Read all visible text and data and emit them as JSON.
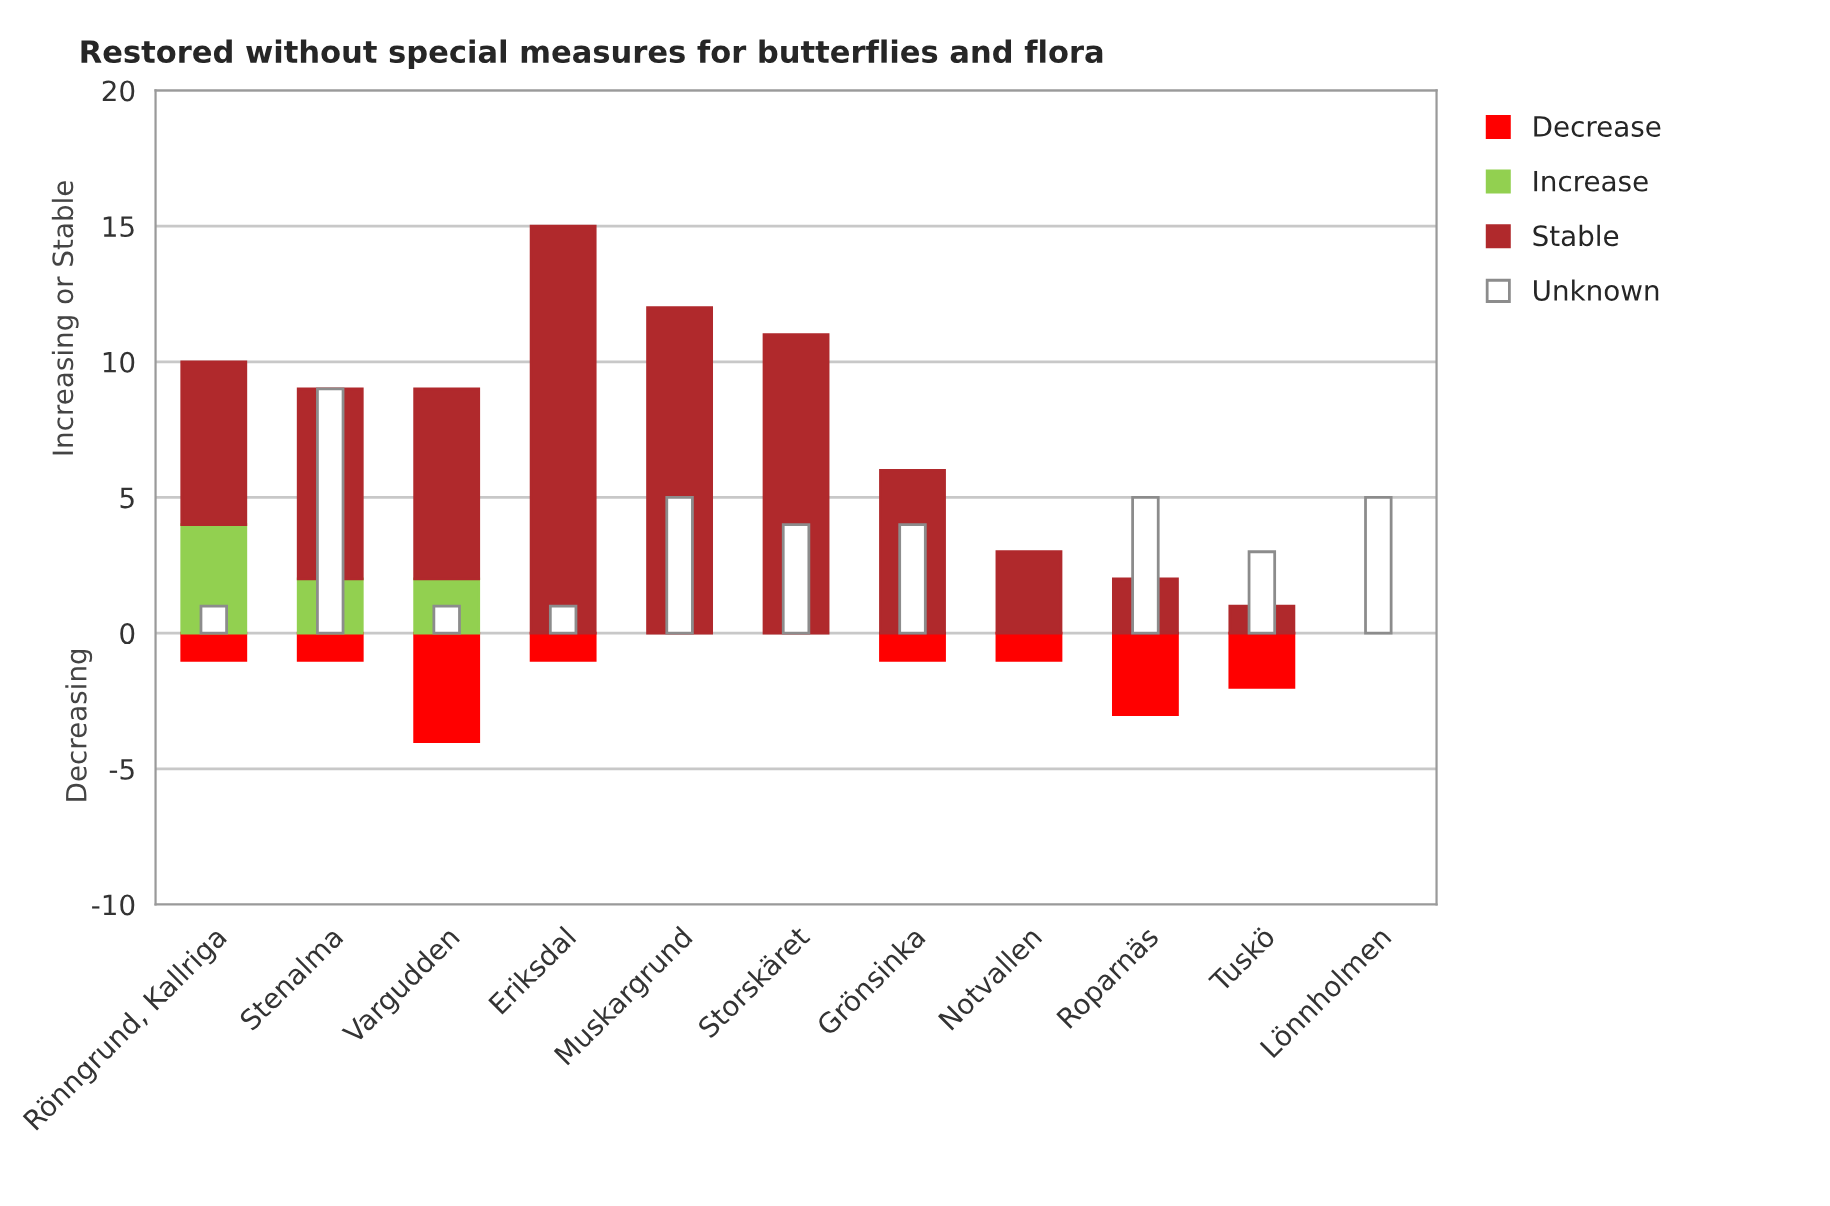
{
  "chart_data": {
    "type": "bar",
    "title": "Restored without special measures for butterflies and flora",
    "ylabel": "Increasing or Stable",
    "annotations": [
      "Decreasing"
    ],
    "categories": [
      "Rönngrund, Kallriga",
      "Stenalma",
      "Vargudden",
      "Eriksdal",
      "Muskargrund",
      "Storskäret",
      "Grönsinka",
      "Notvallen",
      "Roparnäs",
      "Tuskö",
      "Lönnholmen"
    ],
    "series": [
      {
        "name": "Decrease",
        "color": "#ff0000",
        "values": [
          -1,
          -1,
          -4,
          -1,
          null,
          null,
          -1,
          -1,
          -3,
          -2,
          null
        ],
        "base": [
          0,
          0,
          0,
          0,
          null,
          null,
          0,
          0,
          0,
          0,
          null
        ]
      },
      {
        "name": "Increase",
        "color": "#92d050",
        "values": [
          4,
          2,
          2,
          null,
          null,
          null,
          null,
          null,
          null,
          null,
          null
        ],
        "base": [
          0,
          0,
          0,
          null,
          null,
          null,
          null,
          null,
          null,
          null,
          null
        ]
      },
      {
        "name": "Stable",
        "color": "#b0292c",
        "values": [
          6,
          7,
          7,
          15,
          12,
          11,
          6,
          3,
          2,
          1,
          null
        ],
        "base": [
          4,
          2,
          2,
          0,
          0,
          0,
          0,
          0,
          0,
          0,
          null
        ]
      },
      {
        "name": "Unknown",
        "color": "#ffffff",
        "values": [
          1,
          9,
          1,
          1,
          5,
          4,
          4,
          null,
          5,
          3,
          5
        ],
        "base": [
          0,
          0,
          0,
          0,
          0,
          0,
          0,
          null,
          0,
          0,
          0
        ]
      }
    ],
    "ylim": [
      -10,
      20
    ],
    "yticks": [
      -10,
      -5,
      0,
      5,
      10,
      15,
      20
    ],
    "grid": "y",
    "legend": "right"
  }
}
